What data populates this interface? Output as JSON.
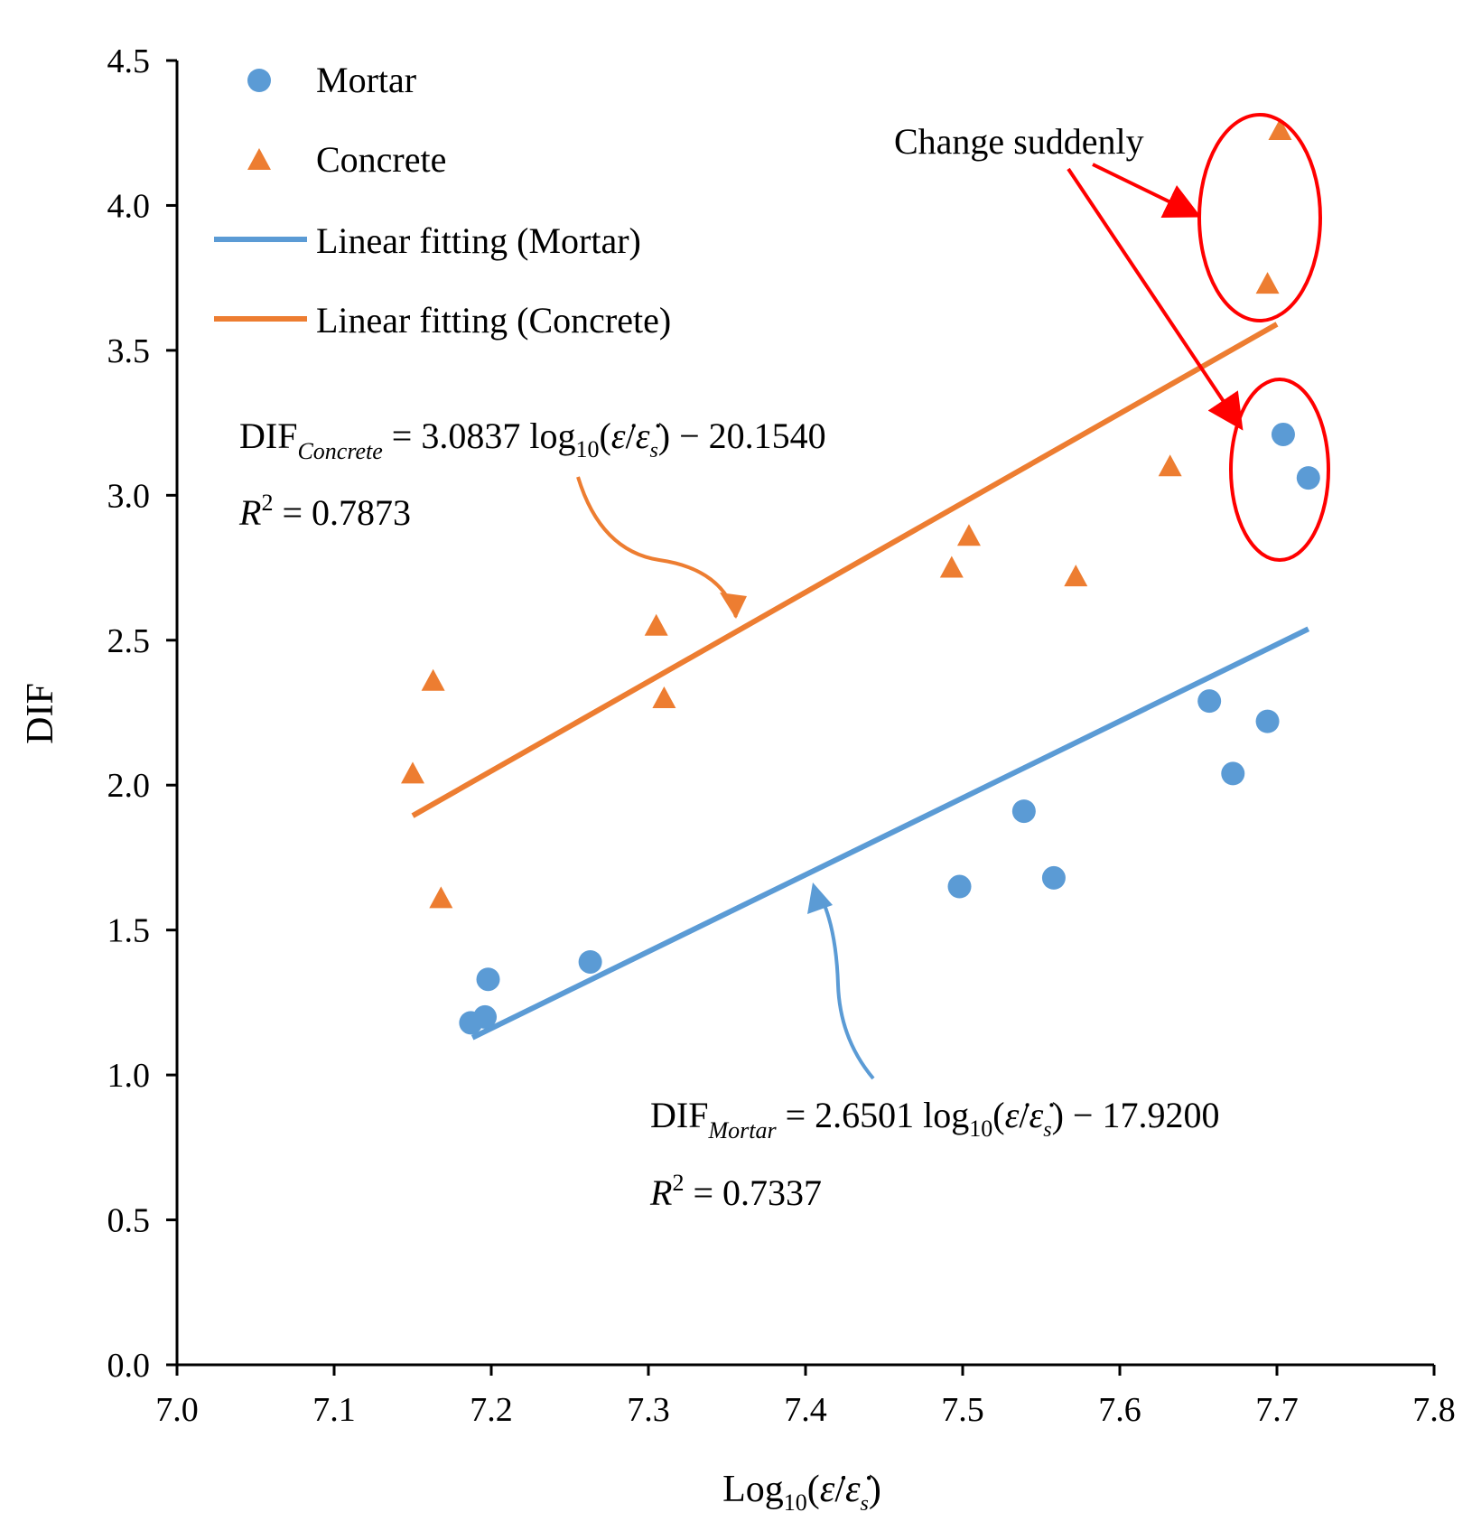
{
  "chart_data": {
    "type": "scatter",
    "title": "",
    "xlabel": "Log10(ε̇/ε̇s)",
    "xlabel_parts": {
      "base": "Log",
      "sub": "10",
      "arg_open": "(",
      "num": "ε̇",
      "slash": "/",
      "den": "ε̇",
      "den_sub": "s",
      "arg_close": ")"
    },
    "ylabel": "DIF",
    "xlim": [
      7.0,
      7.8
    ],
    "ylim": [
      0.0,
      4.5
    ],
    "xticks": [
      "7.0",
      "7.1",
      "7.2",
      "7.3",
      "7.4",
      "7.5",
      "7.6",
      "7.7",
      "7.8"
    ],
    "yticks": [
      "0.0",
      "0.5",
      "1.0",
      "1.5",
      "2.0",
      "2.5",
      "3.0",
      "3.5",
      "4.0",
      "4.5"
    ],
    "grid": false,
    "legend_position": "top-left",
    "series": [
      {
        "name": "Mortar",
        "kind": "scatter",
        "marker": "circle",
        "color": "#5B9BD5",
        "x": [
          7.187,
          7.196,
          7.198,
          7.263,
          7.498,
          7.539,
          7.558,
          7.657,
          7.672,
          7.694,
          7.704,
          7.72
        ],
        "y": [
          1.18,
          1.2,
          1.33,
          1.39,
          1.65,
          1.91,
          1.68,
          2.29,
          2.04,
          2.22,
          3.21,
          3.06
        ]
      },
      {
        "name": "Concrete",
        "kind": "scatter",
        "marker": "triangle",
        "color": "#ED7D31",
        "x": [
          7.15,
          7.163,
          7.168,
          7.305,
          7.31,
          7.493,
          7.504,
          7.572,
          7.632,
          7.694,
          7.702
        ],
        "y": [
          2.04,
          2.36,
          1.61,
          2.55,
          2.3,
          2.75,
          2.86,
          2.72,
          3.1,
          3.73,
          4.26
        ]
      },
      {
        "name": "Linear fitting (Mortar)",
        "kind": "line",
        "color": "#5B9BD5",
        "slope": 2.6501,
        "intercept": -17.92,
        "x_range": [
          7.188,
          7.72
        ]
      },
      {
        "name": "Linear fitting (Concrete)",
        "kind": "line",
        "color": "#ED7D31",
        "slope": 3.0837,
        "intercept": -20.154,
        "x_range": [
          7.15,
          7.7
        ]
      }
    ],
    "annotations": {
      "concrete_eq": {
        "lhs": "DIF",
        "lhs_sub": "Concrete",
        "eq": " = 3.0837 log",
        "log_sub": "10",
        "arg_open": "(",
        "num": "ε̇",
        "slash": "/",
        "den": "ε̇",
        "den_sub": "s",
        "rhs": ") − 20.1540",
        "r2_label": "R",
        "r2_sup": "2",
        "r2_value": " = 0.7873"
      },
      "mortar_eq": {
        "lhs": "DIF",
        "lhs_sub": "Mortar",
        "eq": " = 2.6501 log",
        "log_sub": "10",
        "arg_open": "(",
        "num": "ε̇",
        "slash": "/",
        "den": "ε̇",
        "den_sub": "s",
        "rhs": ") − 17.9200",
        "r2_label": "R",
        "r2_sup": "2",
        "r2_value": " = 0.7337"
      },
      "callout": {
        "text": "Change suddenly",
        "color": "#FF0000"
      }
    }
  }
}
